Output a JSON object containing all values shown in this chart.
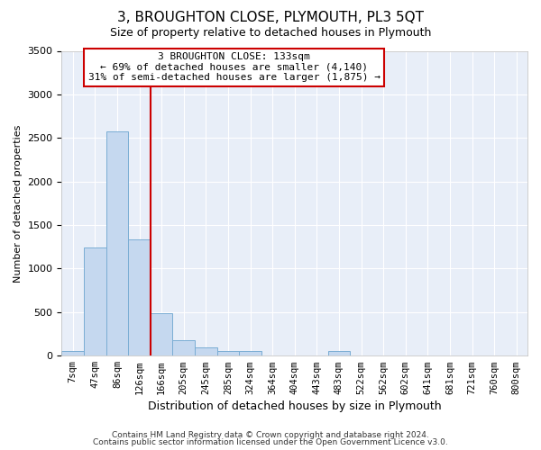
{
  "title": "3, BROUGHTON CLOSE, PLYMOUTH, PL3 5QT",
  "subtitle": "Size of property relative to detached houses in Plymouth",
  "xlabel": "Distribution of detached houses by size in Plymouth",
  "ylabel": "Number of detached properties",
  "bin_labels": [
    "7sqm",
    "47sqm",
    "86sqm",
    "126sqm",
    "166sqm",
    "205sqm",
    "245sqm",
    "285sqm",
    "324sqm",
    "364sqm",
    "404sqm",
    "443sqm",
    "483sqm",
    "522sqm",
    "562sqm",
    "602sqm",
    "641sqm",
    "681sqm",
    "721sqm",
    "760sqm",
    "800sqm"
  ],
  "bar_values": [
    50,
    1245,
    2570,
    1330,
    490,
    175,
    100,
    50,
    50,
    0,
    0,
    0,
    50,
    0,
    0,
    0,
    0,
    0,
    0,
    0,
    0
  ],
  "bar_color": "#c5d8ef",
  "bar_edge_color": "#7aadd4",
  "background_color": "#e8eef8",
  "grid_color": "#ffffff",
  "ylim": [
    0,
    3500
  ],
  "yticks": [
    0,
    500,
    1000,
    1500,
    2000,
    2500,
    3000,
    3500
  ],
  "annotation_line1": "3 BROUGHTON CLOSE: 133sqm",
  "annotation_line2": "← 69% of detached houses are smaller (4,140)",
  "annotation_line3": "31% of semi-detached houses are larger (1,875) →",
  "annotation_box_color": "#ffffff",
  "annotation_box_edge": "#cc0000",
  "red_line_bin_index": 3,
  "footnote1": "Contains HM Land Registry data © Crown copyright and database right 2024.",
  "footnote2": "Contains public sector information licensed under the Open Government Licence v3.0."
}
